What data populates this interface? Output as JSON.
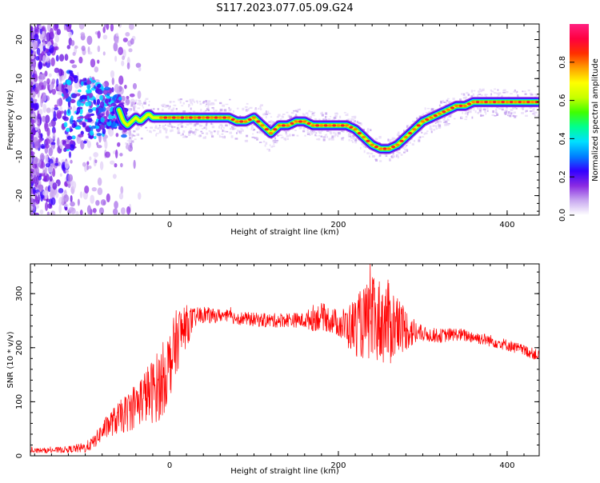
{
  "title": "S117.2023.077.05.09.G24",
  "chart_data": [
    {
      "type": "heatmap",
      "xlabel": "Height of straight line (km)",
      "ylabel": "Frequency (Hz)",
      "xlim": [
        -165,
        438
      ],
      "ylim": [
        -25,
        24
      ],
      "x_ticks": [
        0,
        200,
        400
      ],
      "y_ticks": [
        -20,
        -10,
        0,
        10,
        20
      ],
      "colorbar": {
        "label": "Normalized spectral amplitude",
        "ticks": [
          0.0,
          0.2,
          0.4,
          0.6,
          0.8
        ],
        "range": [
          0,
          1
        ],
        "colors": [
          "#ffffff",
          "#c8a8f0",
          "#8a2be2",
          "#3300ff",
          "#0080ff",
          "#00e0ff",
          "#00ff90",
          "#40ff00",
          "#c8ff00",
          "#ffff00",
          "#ffa000",
          "#ff3000",
          "#ff0040",
          "#ff2080"
        ]
      },
      "ridge": {
        "x": [
          -60,
          -55,
          -50,
          -45,
          -40,
          -35,
          -30,
          -25,
          -20,
          -10,
          0,
          20,
          40,
          60,
          70,
          80,
          90,
          100,
          105,
          110,
          115,
          120,
          125,
          130,
          140,
          150,
          160,
          170,
          180,
          190,
          200,
          210,
          220,
          230,
          240,
          250,
          260,
          270,
          280,
          290,
          300,
          310,
          320,
          330,
          340,
          350,
          360,
          380,
          400,
          420,
          438
        ],
        "y": [
          2,
          -1,
          -2,
          -1,
          0,
          -1,
          0,
          1,
          0,
          0,
          0,
          0,
          0,
          0,
          0,
          -1,
          -1,
          0,
          -1,
          -2,
          -3,
          -4,
          -3,
          -2,
          -2,
          -1,
          -1,
          -2,
          -2,
          -2,
          -2,
          -2,
          -3,
          -5,
          -7,
          -8,
          -8,
          -7,
          -5,
          -3,
          -1,
          0,
          1,
          2,
          3,
          3,
          4,
          4,
          4,
          4,
          4
        ]
      }
    },
    {
      "type": "line",
      "xlabel": "Height of straight line (km)",
      "ylabel": "SNR (10 * v/v)",
      "xlim": [
        -165,
        438
      ],
      "ylim": [
        0,
        355
      ],
      "x_ticks": [
        0,
        200,
        400
      ],
      "y_ticks": [
        0,
        100,
        200,
        300
      ],
      "line_color": "#ff0000",
      "envelope": {
        "x": [
          -165,
          -140,
          -120,
          -100,
          -90,
          -80,
          -70,
          -60,
          -50,
          -40,
          -30,
          -20,
          -10,
          0,
          10,
          20,
          30,
          40,
          50,
          60,
          80,
          100,
          120,
          140,
          160,
          170,
          180,
          190,
          200,
          210,
          220,
          230,
          240,
          250,
          260,
          270,
          280,
          290,
          300,
          320,
          340,
          360,
          380,
          400,
          420,
          438
        ],
        "y": [
          10,
          10,
          12,
          15,
          25,
          45,
          60,
          70,
          80,
          95,
          110,
          120,
          135,
          170,
          220,
          240,
          255,
          262,
          258,
          260,
          255,
          252,
          250,
          252,
          250,
          255,
          258,
          252,
          245,
          238,
          240,
          245,
          250,
          250,
          245,
          240,
          235,
          228,
          225,
          222,
          225,
          220,
          213,
          205,
          195,
          185
        ]
      },
      "noise": {
        "x": [
          -165,
          -120,
          -90,
          -60,
          -30,
          -10,
          10,
          30,
          60,
          160,
          170,
          200,
          220,
          240,
          260,
          280,
          300,
          340,
          438
        ],
        "amp": [
          4,
          6,
          12,
          30,
          50,
          70,
          60,
          18,
          12,
          14,
          25,
          25,
          55,
          80,
          80,
          40,
          14,
          12,
          10
        ]
      }
    }
  ]
}
